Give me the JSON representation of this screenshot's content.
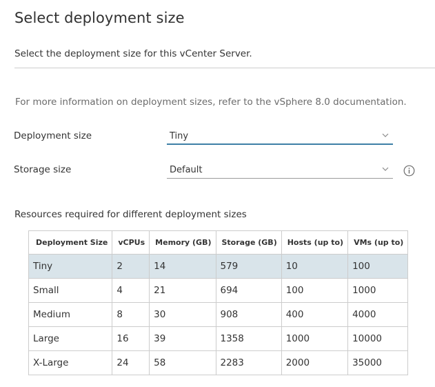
{
  "page": {
    "title": "Select deployment size",
    "subtitle": "Select the deployment size for this vCenter Server.",
    "info_text": "For more information on deployment sizes, refer to the vSphere 8.0 documentation."
  },
  "form": {
    "deployment_size": {
      "label": "Deployment size",
      "value": "Tiny"
    },
    "storage_size": {
      "label": "Storage size",
      "value": "Default"
    }
  },
  "resources": {
    "title": "Resources required for different deployment sizes",
    "headers": [
      "Deployment Size",
      "vCPUs",
      "Memory (GB)",
      "Storage (GB)",
      "Hosts (up to)",
      "VMs (up to)"
    ],
    "rows": [
      [
        "Tiny",
        "2",
        "14",
        "579",
        "10",
        "100"
      ],
      [
        "Small",
        "4",
        "21",
        "694",
        "100",
        "1000"
      ],
      [
        "Medium",
        "8",
        "30",
        "908",
        "400",
        "4000"
      ],
      [
        "Large",
        "16",
        "39",
        "1358",
        "1000",
        "10000"
      ],
      [
        "X-Large",
        "24",
        "58",
        "2283",
        "2000",
        "35000"
      ]
    ],
    "selected_row": "Tiny"
  },
  "colors": {
    "accent": "#3d7fa6",
    "selected_row_bg": "#d9e4ea",
    "info_text": "#6b6b6b"
  },
  "icons": {
    "select_chevron": "chevron-down-icon",
    "storage_help": "info-icon"
  }
}
